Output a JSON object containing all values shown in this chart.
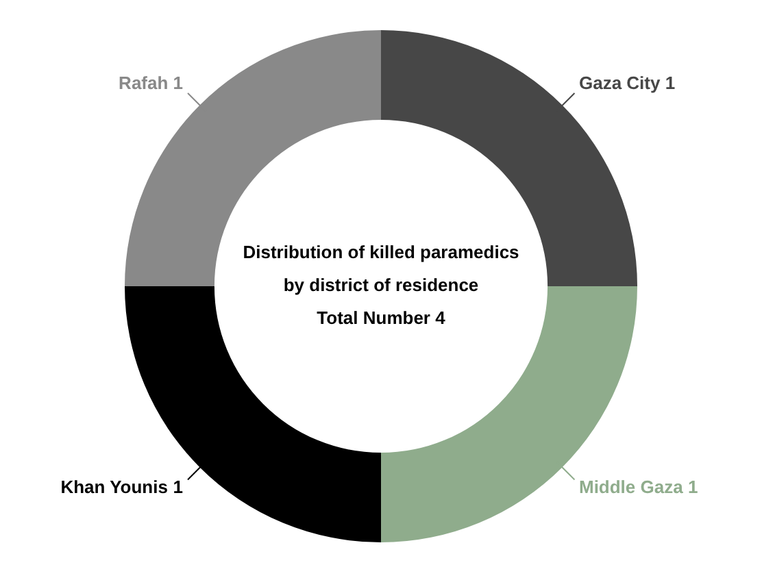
{
  "chart_data": {
    "type": "donut",
    "title": "Distribution of killed paramedics by district of residence",
    "subtitle": "Total Number 4",
    "categories": [
      "Gaza City",
      "Middle Gaza",
      "Khan Younis",
      "Rafah"
    ],
    "values": [
      1,
      1,
      1,
      1
    ],
    "colors": [
      "#474747",
      "#8fac8c",
      "#000000",
      "#898989"
    ],
    "data_labels": true,
    "legend": false
  }
}
